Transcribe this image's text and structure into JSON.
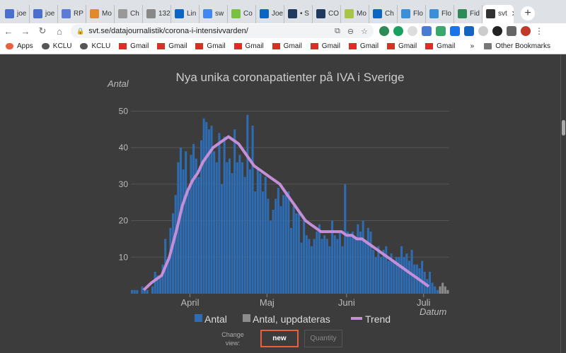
{
  "browser": {
    "tabs": [
      {
        "label": "joe",
        "icon": "doc-icon",
        "color": "#4a6fcf"
      },
      {
        "label": "joe",
        "icon": "doc-icon",
        "color": "#4a6fcf"
      },
      {
        "label": "RP",
        "icon": "globe-icon",
        "color": "#5b7bd5"
      },
      {
        "label": "Mo",
        "icon": "m-icon",
        "color": "#e08a2c"
      },
      {
        "label": "Ch",
        "icon": "page-icon",
        "color": "#999999"
      },
      {
        "label": "132",
        "icon": "globe-icon",
        "color": "#888888"
      },
      {
        "label": "Lin",
        "icon": "linkedin-icon",
        "color": "#0a66c2"
      },
      {
        "label": "sw",
        "icon": "google-icon",
        "color": "#4285f4"
      },
      {
        "label": "Co",
        "icon": "w-icon",
        "color": "#7ac142"
      },
      {
        "label": "Joe",
        "icon": "linkedin-icon",
        "color": "#0a66c2"
      },
      {
        "label": "• S",
        "icon": "page-icon",
        "color": "#1f3a5f"
      },
      {
        "label": "CO",
        "icon": "page-icon",
        "color": "#1f3a5f"
      },
      {
        "label": "Mo",
        "icon": "w-icon",
        "color": "#a8c54a"
      },
      {
        "label": "Ch",
        "icon": "linkedin-icon",
        "color": "#0a66c2"
      },
      {
        "label": "Flo",
        "icon": "flo-icon",
        "color": "#3b8fd9"
      },
      {
        "label": "Flo",
        "icon": "flo-icon",
        "color": "#3b8fd9"
      },
      {
        "label": "Fid",
        "icon": "fid-icon",
        "color": "#2e8b57"
      }
    ],
    "active_tab": {
      "label": "svt",
      "icon": "svt-icon",
      "color": "#333333"
    },
    "url": "svt.se/datajournalistik/corona-i-intensivvarden/",
    "bookmarks": [
      {
        "label": "Apps",
        "icon": "apps-icon",
        "color": "#e8613c"
      },
      {
        "label": "KCLU",
        "icon": "globe-icon",
        "color": "#555555"
      },
      {
        "label": "KCLU",
        "icon": "globe-icon",
        "color": "#555555"
      },
      {
        "label": "Gmail",
        "icon": "gmail-icon",
        "color": "#d93025"
      },
      {
        "label": "Gmail",
        "icon": "gmail-icon",
        "color": "#d93025"
      },
      {
        "label": "Gmail",
        "icon": "gmail-icon",
        "color": "#d93025"
      },
      {
        "label": "Gmail",
        "icon": "gmail-icon",
        "color": "#d93025"
      },
      {
        "label": "Gmail",
        "icon": "gmail-icon",
        "color": "#d93025"
      },
      {
        "label": "Gmail",
        "icon": "gmail-icon",
        "color": "#d93025"
      },
      {
        "label": "Gmail",
        "icon": "gmail-icon",
        "color": "#d93025"
      },
      {
        "label": "Gmail",
        "icon": "gmail-icon",
        "color": "#d93025"
      },
      {
        "label": "Gmail",
        "icon": "gmail-icon",
        "color": "#d93025"
      }
    ],
    "more_bookmarks": "»",
    "other_bookmarks": "Other Bookmarks"
  },
  "page": {
    "change_view_label": "Change view:",
    "btn_new": "new",
    "btn_quantity": "Quantity"
  },
  "chart_data": {
    "type": "bar",
    "title": "Nya unika coronapatienter på IVA i Sverige",
    "ylabel": "Antal",
    "xlabel": "Datum",
    "ylim": [
      0,
      52
    ],
    "yticks": [
      10,
      20,
      30,
      40,
      50
    ],
    "x_tick_labels": [
      {
        "label": "April",
        "day": 23
      },
      {
        "label": "Maj",
        "day": 53
      },
      {
        "label": "Juni",
        "day": 84
      },
      {
        "label": "Juli",
        "day": 114
      }
    ],
    "start_date": "2020-03-09",
    "legend": [
      "Antal",
      "Antal, uppdateras",
      "Trend"
    ],
    "colors": {
      "bar": "#2e6db4",
      "bar_pending": "#8c8c8c",
      "trend": "#c48fd8",
      "grid": "#555555",
      "text": "#bbbbbb",
      "title": "#cccccc"
    },
    "values": [
      1,
      1,
      1,
      0,
      2,
      1,
      1,
      0,
      2,
      6,
      5,
      5,
      8,
      15,
      9,
      18,
      22,
      27,
      36,
      40,
      34,
      39,
      28,
      38,
      41,
      37,
      32,
      42,
      48,
      47,
      45,
      46,
      39,
      36,
      44,
      30,
      43,
      36,
      37,
      33,
      45,
      36,
      38,
      36,
      32,
      49,
      34,
      46,
      28,
      34,
      33,
      28,
      32,
      26,
      20,
      23,
      26,
      29,
      24,
      27,
      28,
      28,
      18,
      24,
      22,
      22,
      14,
      20,
      16,
      15,
      13,
      15,
      17,
      19,
      15,
      16,
      15,
      13,
      20,
      16,
      15,
      17,
      13,
      30,
      17,
      16,
      17,
      15,
      19,
      17,
      20,
      14,
      18,
      17,
      12,
      10,
      13,
      10,
      12,
      13,
      9,
      11,
      9,
      10,
      10,
      13,
      10,
      11,
      9,
      12,
      8,
      8,
      7,
      9,
      6,
      4,
      6,
      3,
      2,
      1
    ],
    "pending_values": [
      2,
      3,
      2,
      1
    ],
    "trend": [
      [
        5,
        1
      ],
      [
        8,
        3
      ],
      [
        12,
        5
      ],
      [
        15,
        10
      ],
      [
        18,
        18
      ],
      [
        20,
        24
      ],
      [
        22,
        28
      ],
      [
        24,
        31
      ],
      [
        26,
        33
      ],
      [
        28,
        36
      ],
      [
        30,
        38
      ],
      [
        32,
        40
      ],
      [
        34,
        41
      ],
      [
        36,
        42
      ],
      [
        38,
        43
      ],
      [
        40,
        42
      ],
      [
        42,
        41
      ],
      [
        44,
        39
      ],
      [
        46,
        37
      ],
      [
        48,
        35
      ],
      [
        50,
        34
      ],
      [
        52,
        33
      ],
      [
        54,
        32
      ],
      [
        56,
        31
      ],
      [
        58,
        30
      ],
      [
        60,
        28
      ],
      [
        62,
        26
      ],
      [
        64,
        24
      ],
      [
        66,
        22
      ],
      [
        68,
        20
      ],
      [
        70,
        19
      ],
      [
        72,
        18
      ],
      [
        74,
        17
      ],
      [
        76,
        17
      ],
      [
        78,
        17
      ],
      [
        80,
        17
      ],
      [
        82,
        17
      ],
      [
        84,
        16
      ],
      [
        86,
        16
      ],
      [
        88,
        15
      ],
      [
        90,
        15
      ],
      [
        92,
        14
      ],
      [
        94,
        13
      ],
      [
        96,
        12
      ],
      [
        98,
        11
      ],
      [
        100,
        10
      ],
      [
        102,
        9
      ],
      [
        104,
        8
      ],
      [
        106,
        7
      ],
      [
        108,
        6
      ],
      [
        110,
        5
      ],
      [
        112,
        4
      ],
      [
        114,
        3
      ],
      [
        116,
        2
      ]
    ]
  }
}
